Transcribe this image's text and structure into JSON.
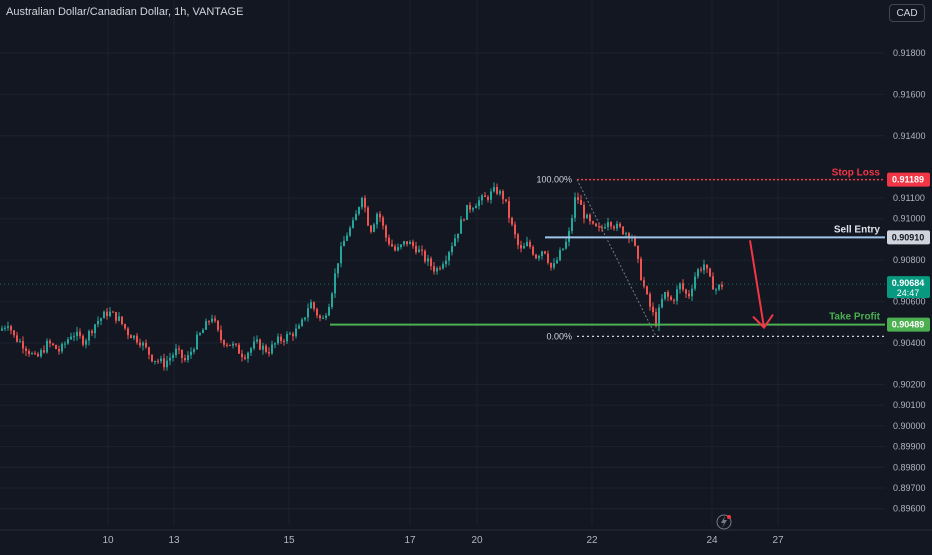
{
  "header": {
    "title": "Australian Dollar/Canadian Dollar, 1h, VANTAGE",
    "currency_button": "CAD"
  },
  "colors": {
    "background": "#131722",
    "grid": "#1e222d",
    "axis_text": "#b2b5be",
    "up": "#26a69a",
    "down": "#ef5350",
    "stop_loss": "#f23645",
    "sell_entry": "#d1d4dc",
    "take_profit": "#4caf50",
    "current_price": "#089981"
  },
  "chart_data": {
    "type": "candlestick",
    "title": "Australian Dollar/Canadian Dollar, 1h, VANTAGE",
    "x_ticks": [
      "10",
      "13",
      "15",
      "17",
      "20",
      "22",
      "24",
      "27"
    ],
    "y_ticks": [
      "0.91800",
      "0.91600",
      "0.91400",
      "0.91100",
      "0.91000",
      "0.90800",
      "0.90600",
      "0.90400",
      "0.90200",
      "0.90100",
      "0.90000",
      "0.89900",
      "0.89800",
      "0.89700",
      "0.89600"
    ],
    "ylim": [
      0.8957,
      0.9198
    ],
    "grid": true,
    "current_price": {
      "value": "0.90684",
      "countdown": "24:47"
    },
    "levels": [
      {
        "name": "Stop Loss",
        "value": 0.91189,
        "label": "0.91189"
      },
      {
        "name": "Sell Entry",
        "value": 0.9091,
        "label": "0.90910"
      },
      {
        "name": "Take Profit",
        "value": 0.90489,
        "label": "0.90489"
      }
    ],
    "fib": [
      {
        "label": "100.00%",
        "value": 0.91189
      },
      {
        "label": "0.00%",
        "value": 0.90432
      }
    ],
    "price_path": [
      [
        0,
        0.9046
      ],
      [
        8,
        0.905
      ],
      [
        14,
        0.9043
      ],
      [
        24,
        0.9039
      ],
      [
        36,
        0.9032
      ],
      [
        48,
        0.904
      ],
      [
        60,
        0.9036
      ],
      [
        72,
        0.9045
      ],
      [
        84,
        0.9041
      ],
      [
        96,
        0.905
      ],
      [
        108,
        0.9055
      ],
      [
        118,
        0.9052
      ],
      [
        128,
        0.9045
      ],
      [
        140,
        0.9041
      ],
      [
        152,
        0.9033
      ],
      [
        164,
        0.903
      ],
      [
        176,
        0.9036
      ],
      [
        186,
        0.9031
      ],
      [
        196,
        0.9041
      ],
      [
        204,
        0.9047
      ],
      [
        212,
        0.9053
      ],
      [
        220,
        0.9042
      ],
      [
        232,
        0.9039
      ],
      [
        244,
        0.9034
      ],
      [
        256,
        0.904
      ],
      [
        268,
        0.9036
      ],
      [
        278,
        0.9041
      ],
      [
        290,
        0.9044
      ],
      [
        300,
        0.9047
      ],
      [
        310,
        0.906
      ],
      [
        322,
        0.905
      ],
      [
        330,
        0.9061
      ],
      [
        338,
        0.908
      ],
      [
        346,
        0.9092
      ],
      [
        354,
        0.9098
      ],
      [
        362,
        0.9112
      ],
      [
        370,
        0.9094
      ],
      [
        378,
        0.9104
      ],
      [
        386,
        0.9091
      ],
      [
        396,
        0.9084
      ],
      [
        406,
        0.9089
      ],
      [
        416,
        0.9086
      ],
      [
        426,
        0.908
      ],
      [
        436,
        0.9075
      ],
      [
        446,
        0.9082
      ],
      [
        456,
        0.9092
      ],
      [
        466,
        0.9104
      ],
      [
        476,
        0.9108
      ],
      [
        486,
        0.911
      ],
      [
        496,
        0.9114
      ],
      [
        504,
        0.911
      ],
      [
        512,
        0.9096
      ],
      [
        520,
        0.9084
      ],
      [
        528,
        0.9088
      ],
      [
        536,
        0.9082
      ],
      [
        544,
        0.9086
      ],
      [
        552,
        0.9075
      ],
      [
        560,
        0.9083
      ],
      [
        568,
        0.909
      ],
      [
        576,
        0.9112
      ],
      [
        584,
        0.9102
      ],
      [
        592,
        0.9096
      ],
      [
        600,
        0.9094
      ],
      [
        608,
        0.91
      ],
      [
        616,
        0.9096
      ],
      [
        624,
        0.9094
      ],
      [
        632,
        0.9092
      ],
      [
        640,
        0.9074
      ],
      [
        648,
        0.906
      ],
      [
        656,
        0.905
      ],
      [
        664,
        0.9064
      ],
      [
        672,
        0.906
      ],
      [
        680,
        0.9068
      ],
      [
        688,
        0.9062
      ],
      [
        696,
        0.9074
      ],
      [
        704,
        0.9078
      ],
      [
        710,
        0.907
      ],
      [
        716,
        0.9066
      ],
      [
        722,
        0.9068
      ]
    ]
  },
  "x_range": [
    0,
    885
  ]
}
